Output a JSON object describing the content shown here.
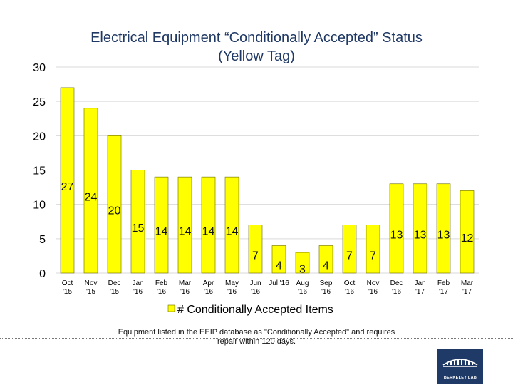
{
  "title": {
    "line1": "Electrical Equipment “Conditionally Accepted” Status",
    "line2": "(Yellow Tag)"
  },
  "footnote": {
    "line1": "Equipment listed in the EEIP database as \"Conditionally Accepted\" and requires",
    "line2": "repair within 120 days."
  },
  "logo": {
    "icon": "berkeley-lab-building-icon",
    "text": "BERKELEY LAB"
  },
  "colors": {
    "bar": "#ffff00",
    "bar_stroke": "#6b6b00",
    "grid": "#d9d9d9",
    "title": "#1f3864"
  },
  "chart_data": {
    "type": "bar",
    "categories": [
      [
        "Oct",
        "'15"
      ],
      [
        "Nov",
        "'15"
      ],
      [
        "Dec",
        "'15"
      ],
      [
        "Jan",
        "'16"
      ],
      [
        "Feb",
        "'16"
      ],
      [
        "Mar",
        "'16"
      ],
      [
        "Apr",
        "'16"
      ],
      [
        "May",
        "'16"
      ],
      [
        "Jun",
        "'16"
      ],
      [
        "Jul '16",
        ""
      ],
      [
        "Aug",
        "'16"
      ],
      [
        "Sep",
        "'16"
      ],
      [
        "Oct",
        "'16"
      ],
      [
        "Nov",
        "'16"
      ],
      [
        "Dec",
        "'16"
      ],
      [
        "Jan",
        "'17"
      ],
      [
        "Feb",
        "'17"
      ],
      [
        "Mar",
        "'17"
      ]
    ],
    "series": [
      {
        "name": "# Conditionally Accepted Items",
        "values": [
          27,
          24,
          20,
          15,
          14,
          14,
          14,
          14,
          7,
          4,
          3,
          4,
          7,
          7,
          13,
          13,
          13,
          12
        ]
      }
    ],
    "ylim": [
      0,
      30
    ],
    "yticks": [
      0,
      5,
      10,
      15,
      20,
      25,
      30
    ],
    "grid": true,
    "legend_position": "bottom",
    "data_labels": true
  }
}
